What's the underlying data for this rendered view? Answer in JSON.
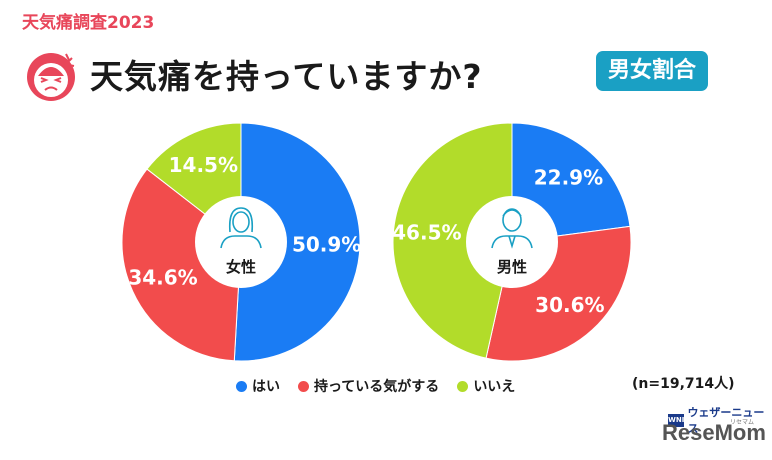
{
  "kicker": "天気痛調査2023",
  "title": "天気痛を持っていますか?",
  "badge": "男女割合",
  "sample_note": "(n=19,714人)",
  "logos": {
    "wni": "WNI",
    "wni_text": "ウェザーニュース",
    "resemom": "ReseMom",
    "resemom_reading": "リセマム"
  },
  "colors": {
    "hai": "#1a7cf4",
    "kigasuru": "#f24c4c",
    "iie": "#b2dc2a"
  },
  "chart_data": [
    {
      "type": "pie",
      "center_label": "女性",
      "categories": [
        "はい",
        "持っている気がする",
        "いいえ"
      ],
      "values": [
        50.9,
        34.6,
        14.5
      ],
      "labels": [
        "50.9%",
        "34.6%",
        "14.5%"
      ]
    },
    {
      "type": "pie",
      "center_label": "男性",
      "categories": [
        "はい",
        "持っている気がする",
        "いいえ"
      ],
      "values": [
        22.9,
        30.6,
        46.5
      ],
      "labels": [
        "22.9%",
        "30.6%",
        "46.5%"
      ]
    }
  ],
  "legend": [
    {
      "label": "はい",
      "color": "#1a7cf4"
    },
    {
      "label": "持っている気がする",
      "color": "#f24c4c"
    },
    {
      "label": "いいえ",
      "color": "#b2dc2a"
    }
  ]
}
